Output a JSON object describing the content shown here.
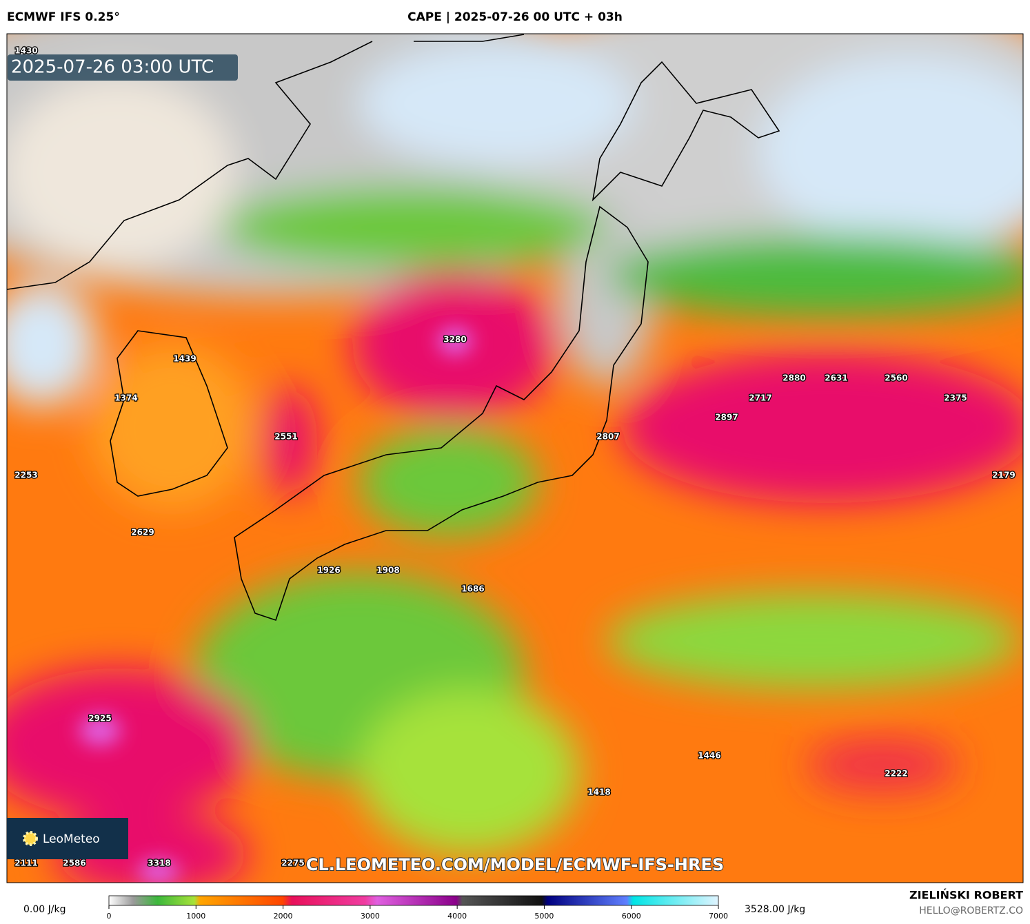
{
  "header": {
    "model": "ECMWF IFS 0.25°",
    "title": "CAPE | 2025-07-26 00 UTC + 03h"
  },
  "timestamp": "2025-07-26 03:00 UTC",
  "map_labels": [
    "1430",
    "3280",
    "1439",
    "1374",
    "2551",
    "2253",
    "2629",
    "2880",
    "2631",
    "2560",
    "2717",
    "2375",
    "2897",
    "2807",
    "2179",
    "1926",
    "1908",
    "1686",
    "2925",
    "1446",
    "2222",
    "1418",
    "2111",
    "2586",
    "3318",
    "2275"
  ],
  "logo": "LeoMeteo",
  "watermark": "CL.LEOMETEO.COM/MODEL/ECMWF-IFS-HRES",
  "colorbar": {
    "min_label": "0.00 J/kg",
    "max_label": "3528.00 J/kg",
    "lim": [
      0,
      7000
    ],
    "ticks": [
      0,
      1000,
      2000,
      3000,
      4000,
      5000,
      6000,
      7000
    ]
  },
  "credit": {
    "name": "ZIELIŃSKI ROBERT",
    "email": "HELLO@ROBERTZ.CO"
  }
}
